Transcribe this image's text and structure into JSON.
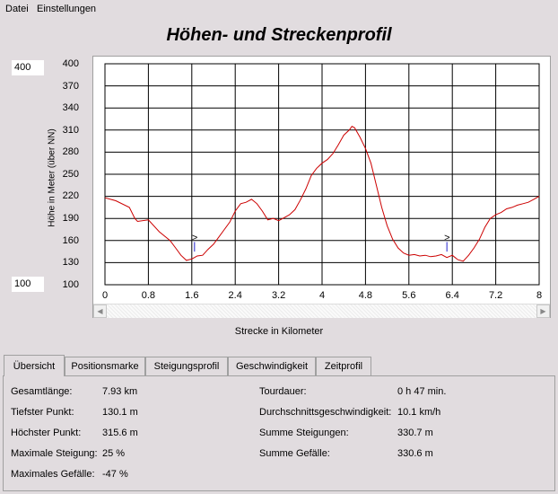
{
  "menu": {
    "file": "Datei",
    "settings": "Einstellungen"
  },
  "title": "Höhen- und Streckenprofil",
  "scale_boxes": {
    "max": "400",
    "min": "100"
  },
  "chart_data": {
    "type": "line",
    "xlabel": "Strecke in Kilometer",
    "ylabel": "Höhe in Meter (über NN)",
    "xlim": [
      0,
      8
    ],
    "ylim": [
      100,
      400
    ],
    "x_ticks": [
      "0",
      "0.8",
      "1.6",
      "2.4",
      "3.2",
      "4",
      "4.8",
      "5.6",
      "6.4",
      "7.2",
      "8"
    ],
    "y_ticks": [
      "400",
      "370",
      "340",
      "310",
      "280",
      "250",
      "220",
      "190",
      "160",
      "130",
      "100"
    ],
    "grid": true,
    "line_color": "#cc0000",
    "series": [
      {
        "x": [
          0.0,
          0.2,
          0.45,
          0.55,
          0.6,
          0.8,
          1.0,
          1.2,
          1.3,
          1.4,
          1.5,
          1.6,
          1.65,
          1.7,
          1.8,
          1.9,
          2.0,
          2.1,
          2.2,
          2.3,
          2.4,
          2.5,
          2.6,
          2.7,
          2.8,
          2.9,
          3.0,
          3.1,
          3.2,
          3.3,
          3.4,
          3.5,
          3.6,
          3.7,
          3.8,
          3.9,
          4.0,
          4.1,
          4.2,
          4.3,
          4.4,
          4.5,
          4.55,
          4.6,
          4.7,
          4.8,
          4.9,
          5.0,
          5.1,
          5.2,
          5.3,
          5.4,
          5.5,
          5.6,
          5.7,
          5.8,
          5.9,
          6.0,
          6.1,
          6.2,
          6.3,
          6.4,
          6.5,
          6.6,
          6.7,
          6.8,
          6.9,
          7.0,
          7.1,
          7.2,
          7.3,
          7.4,
          7.5,
          7.6,
          7.7,
          7.8,
          7.9,
          8.0
        ],
        "y": [
          218,
          214,
          205,
          190,
          186,
          188,
          172,
          160,
          150,
          140,
          133,
          135,
          137,
          139,
          140,
          148,
          155,
          165,
          175,
          185,
          200,
          210,
          212,
          216,
          210,
          200,
          188,
          190,
          187,
          191,
          195,
          202,
          215,
          230,
          248,
          258,
          265,
          270,
          278,
          290,
          303,
          310,
          315,
          313,
          300,
          285,
          265,
          235,
          205,
          180,
          162,
          150,
          143,
          140,
          141,
          139,
          140,
          138,
          139,
          141,
          137,
          140,
          134,
          132,
          140,
          150,
          162,
          178,
          190,
          195,
          198,
          203,
          205,
          208,
          210,
          212,
          216,
          220
        ]
      }
    ],
    "markers": [
      {
        "x": 1.65,
        "label": ">"
      },
      {
        "x": 6.3,
        "label": ">"
      }
    ]
  },
  "tabs": [
    "Übersicht",
    "Positionsmarke",
    "Steigungsprofil",
    "Geschwindigkeit",
    "Zeitprofil"
  ],
  "summary_left": [
    {
      "label": "Gesamtlänge:",
      "value": "7.93 km"
    },
    {
      "label": "Tiefster Punkt:",
      "value": "130.1 m"
    },
    {
      "label": "Höchster Punkt:",
      "value": "315.6 m"
    },
    {
      "label": "Maximale Steigung:",
      "value": "25 %"
    },
    {
      "label": "Maximales Gefälle:",
      "value": "-47 %"
    }
  ],
  "summary_right": [
    {
      "label": "Tourdauer:",
      "value": "0 h 47 min."
    },
    {
      "label": "Durchschnittsgeschwindigkeit:",
      "value": "10.1 km/h"
    },
    {
      "label": "Summe Steigungen:",
      "value": "330.7 m"
    },
    {
      "label": "Summe Gefälle:",
      "value": "330.6 m"
    }
  ],
  "scroll_icons": {
    "left": "triangle-left",
    "right": "triangle-right"
  }
}
